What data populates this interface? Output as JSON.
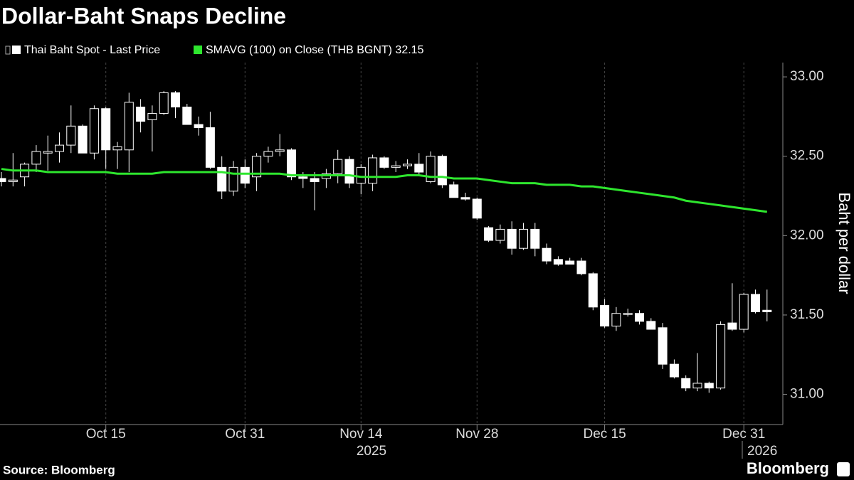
{
  "chart_data": {
    "type": "candlestick",
    "title": "Dollar-Baht Snaps Decline",
    "source": "Source: Bloomberg",
    "brand": "Bloomberg",
    "y_axis_label": "Baht per dollar",
    "year_labels": [
      "2025",
      "2026"
    ],
    "categories": [
      null,
      null,
      null,
      null,
      null,
      null,
      null,
      null,
      null,
      "Oct 15",
      null,
      null,
      null,
      null,
      null,
      null,
      null,
      null,
      null,
      null,
      null,
      "Oct 31",
      null,
      null,
      null,
      null,
      null,
      null,
      null,
      null,
      null,
      "Nov 14",
      null,
      null,
      null,
      null,
      null,
      null,
      null,
      null,
      null,
      "Nov 28",
      null,
      null,
      null,
      null,
      null,
      null,
      null,
      null,
      null,
      null,
      "Dec 15",
      null,
      null,
      null,
      null,
      null,
      null,
      null,
      null,
      null,
      null,
      null,
      "Dec 31",
      null,
      null
    ],
    "ylim": [
      30.81,
      33.09
    ],
    "yticks": [
      {
        "value": 31,
        "label": "31.00"
      },
      {
        "value": 31.5,
        "label": "31.50"
      },
      {
        "value": 32,
        "label": "32.00"
      },
      {
        "value": 32.5,
        "label": "32.50"
      },
      {
        "value": 33,
        "label": "33.00"
      }
    ],
    "xgrid": true,
    "candles": {
      "name": "Thai Baht Spot - Last Price",
      "color": "#ffffff",
      "open": [
        32.36,
        32.34,
        32.37,
        32.45,
        32.52,
        32.53,
        32.57,
        32.69,
        32.52,
        32.8,
        32.54,
        32.54,
        32.81,
        32.73,
        32.77,
        32.9,
        32.81,
        32.7,
        32.68,
        32.43,
        32.28,
        32.43,
        32.37,
        32.5,
        32.53,
        32.54,
        32.37,
        32.36,
        32.36,
        32.39,
        32.48,
        32.33,
        32.33,
        32.49,
        32.43,
        32.44,
        32.45,
        32.34,
        32.5,
        32.32,
        32.24,
        32.23,
        32.05,
        31.97,
        32.04,
        31.92,
        32.04,
        31.92,
        31.85,
        31.84,
        31.84,
        31.76,
        31.56,
        31.43,
        31.51,
        31.51,
        31.46,
        31.42,
        31.19,
        31.1,
        31.04,
        31.07,
        31.04,
        31.45,
        31.41,
        31.63,
        31.53
      ],
      "high": [
        32.4,
        32.52,
        32.46,
        32.57,
        32.63,
        32.65,
        32.82,
        32.7,
        32.82,
        32.81,
        32.59,
        32.9,
        32.86,
        32.82,
        32.91,
        32.91,
        32.83,
        32.75,
        32.78,
        32.5,
        32.47,
        32.48,
        32.52,
        32.56,
        32.64,
        32.55,
        32.4,
        32.4,
        32.42,
        32.54,
        32.5,
        32.45,
        32.51,
        32.5,
        32.47,
        32.48,
        32.52,
        32.53,
        32.51,
        32.34,
        32.27,
        32.24,
        32.06,
        32.07,
        32.09,
        32.08,
        32.08,
        31.95,
        31.87,
        31.86,
        31.86,
        31.77,
        31.6,
        31.55,
        31.54,
        31.53,
        31.48,
        31.45,
        31.22,
        31.12,
        31.26,
        31.08,
        31.46,
        31.7,
        31.64,
        31.66,
        31.66
      ],
      "low": [
        32.31,
        32.31,
        32.31,
        32.4,
        32.41,
        32.46,
        32.52,
        32.52,
        32.48,
        32.42,
        32.42,
        32.4,
        32.65,
        32.53,
        32.76,
        32.74,
        32.7,
        32.63,
        32.42,
        32.23,
        32.25,
        32.3,
        32.28,
        32.46,
        32.5,
        32.35,
        32.3,
        32.16,
        32.3,
        32.33,
        32.3,
        32.26,
        32.28,
        32.42,
        32.4,
        32.42,
        32.38,
        32.33,
        32.3,
        32.24,
        32.22,
        32.1,
        31.96,
        31.95,
        31.88,
        31.91,
        31.87,
        31.82,
        31.81,
        31.82,
        31.75,
        31.53,
        31.42,
        31.4,
        31.49,
        31.44,
        31.41,
        31.16,
        31.1,
        31.02,
        31.02,
        31.01,
        31.03,
        31.4,
        31.39,
        31.51,
        31.46
      ],
      "close": [
        32.34,
        32.35,
        32.45,
        32.53,
        32.53,
        32.57,
        32.69,
        32.52,
        32.8,
        32.54,
        32.56,
        32.84,
        32.72,
        32.77,
        32.9,
        32.81,
        32.7,
        32.68,
        32.43,
        32.28,
        32.43,
        32.33,
        32.5,
        32.53,
        32.54,
        32.37,
        32.36,
        32.34,
        32.39,
        32.48,
        32.33,
        32.43,
        32.49,
        32.43,
        32.44,
        32.45,
        32.4,
        32.5,
        32.32,
        32.24,
        32.23,
        32.11,
        31.97,
        32.04,
        31.92,
        32.04,
        31.92,
        31.84,
        31.82,
        31.82,
        31.76,
        31.55,
        31.43,
        31.51,
        31.51,
        31.46,
        31.41,
        31.19,
        31.11,
        31.04,
        31.07,
        31.04,
        31.44,
        31.41,
        31.63,
        31.52,
        31.52
      ]
    },
    "series": [
      {
        "name": "SMAVG (100)  on Close (THB BGNT) 32.15",
        "color": "#2ee62e",
        "values": [
          32.42,
          32.41,
          32.41,
          32.41,
          32.4,
          32.4,
          32.4,
          32.4,
          32.4,
          32.4,
          32.39,
          32.39,
          32.39,
          32.39,
          32.4,
          32.4,
          32.4,
          32.4,
          32.4,
          32.4,
          32.39,
          32.39,
          32.39,
          32.39,
          32.39,
          32.38,
          32.38,
          32.38,
          32.38,
          32.38,
          32.38,
          32.37,
          32.37,
          32.37,
          32.37,
          32.38,
          32.38,
          32.37,
          32.37,
          32.36,
          32.36,
          32.36,
          32.35,
          32.34,
          32.33,
          32.33,
          32.33,
          32.32,
          32.32,
          32.32,
          32.31,
          32.31,
          32.3,
          32.29,
          32.28,
          32.27,
          32.26,
          32.25,
          32.24,
          32.22,
          32.21,
          32.2,
          32.19,
          32.18,
          32.17,
          32.16,
          32.15
        ]
      }
    ]
  }
}
